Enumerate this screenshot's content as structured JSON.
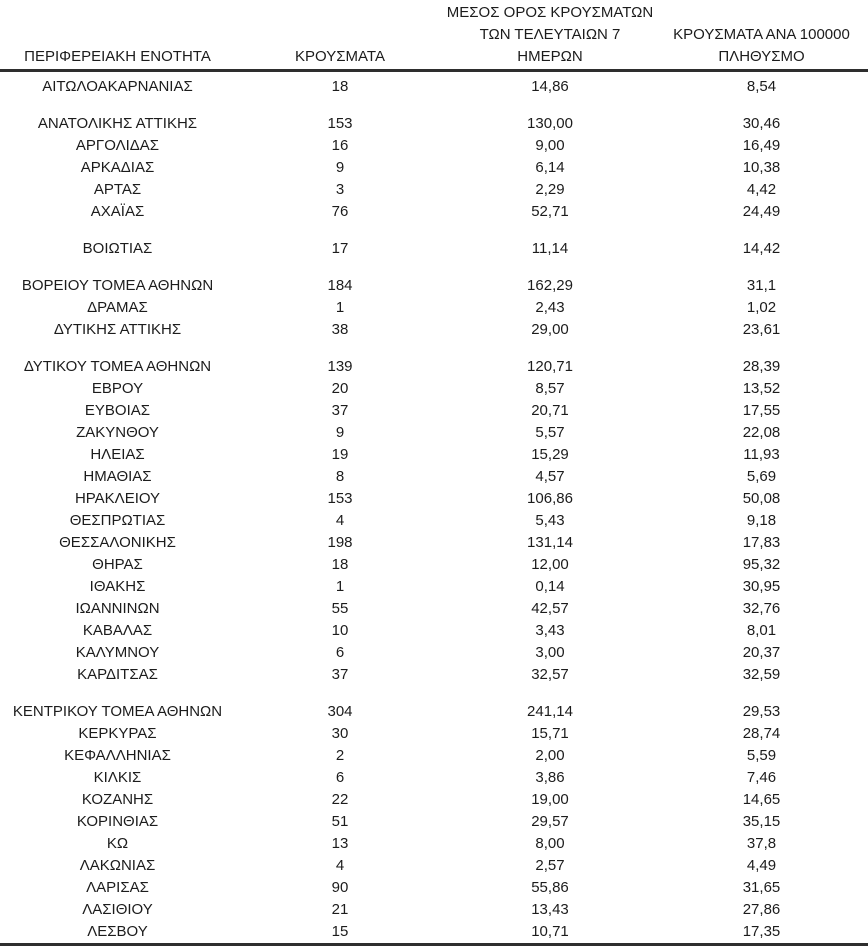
{
  "page": {
    "background": "#ffffff",
    "text_color": "#1c1c1c",
    "rule_color": "#2e2e2e"
  },
  "table": {
    "headers": [
      "ΠΕΡΙΦΕΡΕΙΑΚΗ ΕΝΟΤΗΤΑ",
      "ΚΡΟΥΣΜΑΤΑ",
      "ΜΕΣΟΣ ΟΡΟΣ ΚΡΟΥΣΜΑΤΩΝ\nΤΩΝ ΤΕΛΕΥΤΑΙΩΝ 7\nΗΜΕΡΩΝ",
      "ΚΡΟΥΣΜΑΤΑ ΑΝΑ 100000\nΠΛΗΘΥΣΜΟ"
    ],
    "groups": [
      [
        [
          "ΑΙΤΩΛΟΑΚΑΡΝΑΝΙΑΣ",
          "18",
          "14,86",
          "8,54"
        ]
      ],
      [
        [
          "ΑΝΑΤΟΛΙΚΗΣ ΑΤΤΙΚΗΣ",
          "153",
          "130,00",
          "30,46"
        ],
        [
          "ΑΡΓΟΛΙΔΑΣ",
          "16",
          "9,00",
          "16,49"
        ],
        [
          "ΑΡΚΑΔΙΑΣ",
          "9",
          "6,14",
          "10,38"
        ],
        [
          "ΑΡΤΑΣ",
          "3",
          "2,29",
          "4,42"
        ],
        [
          "ΑΧΑΪΑΣ",
          "76",
          "52,71",
          "24,49"
        ]
      ],
      [
        [
          "ΒΟΙΩΤΙΑΣ",
          "17",
          "11,14",
          "14,42"
        ]
      ],
      [
        [
          "ΒΟΡΕΙΟΥ ΤΟΜΕΑ ΑΘΗΝΩΝ",
          "184",
          "162,29",
          "31,1"
        ],
        [
          "ΔΡΑΜΑΣ",
          "1",
          "2,43",
          "1,02"
        ],
        [
          "ΔΥΤΙΚΗΣ ΑΤΤΙΚΗΣ",
          "38",
          "29,00",
          "23,61"
        ]
      ],
      [
        [
          "ΔΥΤΙΚΟΥ ΤΟΜΕΑ ΑΘΗΝΩΝ",
          "139",
          "120,71",
          "28,39"
        ],
        [
          "ΕΒΡΟΥ",
          "20",
          "8,57",
          "13,52"
        ],
        [
          "ΕΥΒΟΙΑΣ",
          "37",
          "20,71",
          "17,55"
        ],
        [
          "ΖΑΚΥΝΘΟΥ",
          "9",
          "5,57",
          "22,08"
        ],
        [
          "ΗΛΕΙΑΣ",
          "19",
          "15,29",
          "11,93"
        ],
        [
          "ΗΜΑΘΙΑΣ",
          "8",
          "4,57",
          "5,69"
        ],
        [
          "ΗΡΑΚΛΕΙΟΥ",
          "153",
          "106,86",
          "50,08"
        ],
        [
          "ΘΕΣΠΡΩΤΙΑΣ",
          "4",
          "5,43",
          "9,18"
        ],
        [
          "ΘΕΣΣΑΛΟΝΙΚΗΣ",
          "198",
          "131,14",
          "17,83"
        ],
        [
          "ΘΗΡΑΣ",
          "18",
          "12,00",
          "95,32"
        ],
        [
          "ΙΘΑΚΗΣ",
          "1",
          "0,14",
          "30,95"
        ],
        [
          "ΙΩΑΝΝΙΝΩΝ",
          "55",
          "42,57",
          "32,76"
        ],
        [
          "ΚΑΒΑΛΑΣ",
          "10",
          "3,43",
          "8,01"
        ],
        [
          "ΚΑΛΥΜΝΟΥ",
          "6",
          "3,00",
          "20,37"
        ],
        [
          "ΚΑΡΔΙΤΣΑΣ",
          "37",
          "32,57",
          "32,59"
        ]
      ],
      [
        [
          "ΚΕΝΤΡΙΚΟΥ ΤΟΜΕΑ ΑΘΗΝΩΝ",
          "304",
          "241,14",
          "29,53"
        ],
        [
          "ΚΕΡΚΥΡΑΣ",
          "30",
          "15,71",
          "28,74"
        ],
        [
          "ΚΕΦΑΛΛΗΝΙΑΣ",
          "2",
          "2,00",
          "5,59"
        ],
        [
          "ΚΙΛΚΙΣ",
          "6",
          "3,86",
          "7,46"
        ],
        [
          "ΚΟΖΑΝΗΣ",
          "22",
          "19,00",
          "14,65"
        ],
        [
          "ΚΟΡΙΝΘΙΑΣ",
          "51",
          "29,57",
          "35,15"
        ],
        [
          "ΚΩ",
          "13",
          "8,00",
          "37,8"
        ],
        [
          "ΛΑΚΩΝΙΑΣ",
          "4",
          "2,57",
          "4,49"
        ],
        [
          "ΛΑΡΙΣΑΣ",
          "90",
          "55,86",
          "31,65"
        ],
        [
          "ΛΑΣΙΘΙΟΥ",
          "21",
          "13,43",
          "27,86"
        ],
        [
          "ΛΕΣΒΟΥ",
          "15",
          "10,71",
          "17,35"
        ]
      ]
    ]
  }
}
